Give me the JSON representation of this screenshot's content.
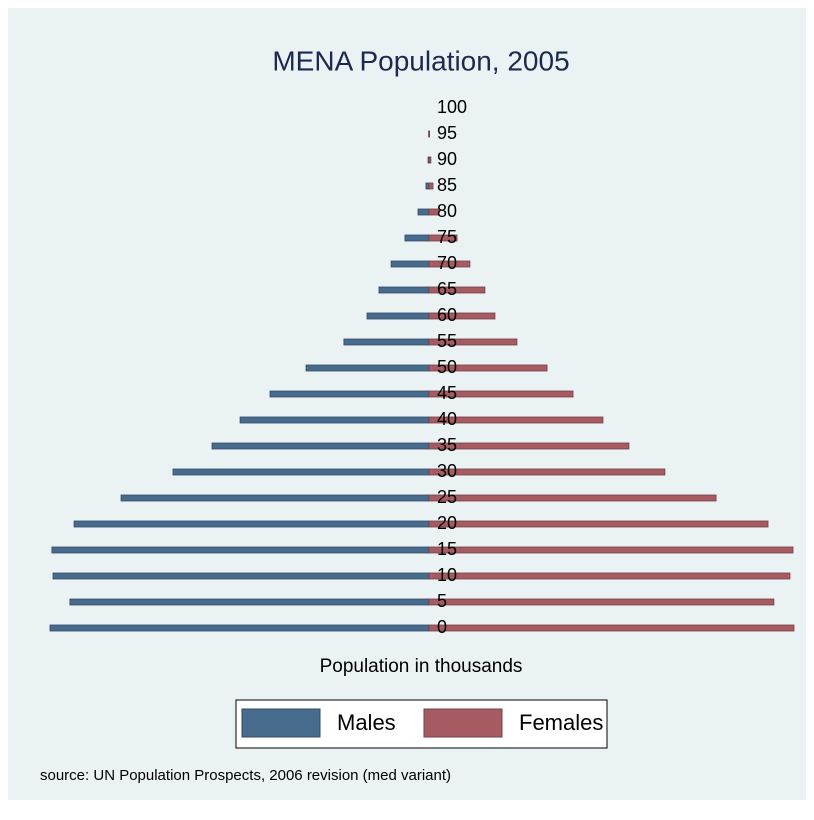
{
  "chart_data": {
    "type": "bar",
    "orientation": "horizontal",
    "layout": "pyramid",
    "title": "MENA Population, 2005",
    "xlabel": "Population in thousands",
    "source": "source: UN Population Prospects, 2006 revision (med variant)",
    "categories": [
      "0",
      "5",
      "10",
      "15",
      "20",
      "25",
      "30",
      "35",
      "40",
      "45",
      "50",
      "55",
      "60",
      "65",
      "70",
      "75",
      "80",
      "85",
      "90",
      "95",
      "100"
    ],
    "series": [
      {
        "name": "Males",
        "color": "#466b8d",
        "values": [
          20000,
          18950,
          19840,
          19900,
          18730,
          16250,
          13510,
          11450,
          9970,
          8390,
          6490,
          4490,
          3270,
          2640,
          2000,
          1270,
          580,
          160,
          50,
          20,
          0
        ]
      },
      {
        "name": "Females",
        "color": "#a65b62",
        "values": [
          19260,
          18200,
          19050,
          19210,
          17890,
          15150,
          12450,
          10550,
          9180,
          7600,
          6230,
          4640,
          3480,
          2950,
          2160,
          1480,
          530,
          210,
          100,
          30,
          0
        ]
      }
    ],
    "xlim": [
      0,
      20000
    ]
  }
}
